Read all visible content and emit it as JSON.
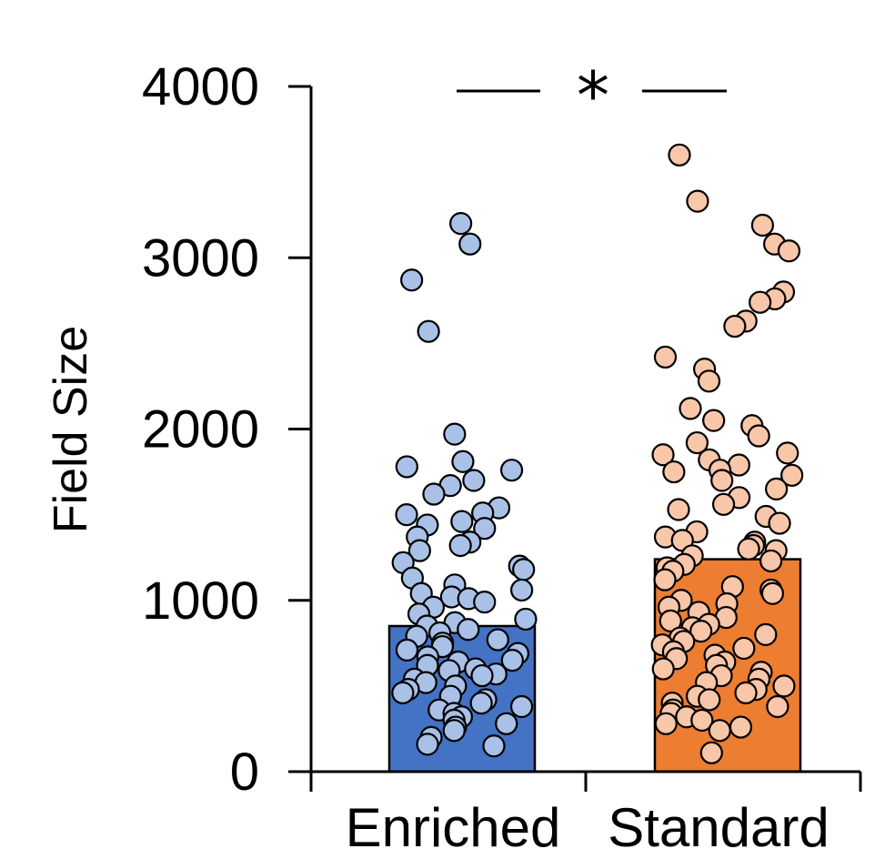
{
  "chart_data": {
    "type": "bar",
    "ylabel": "Field Size",
    "ylim": [
      0,
      4000
    ],
    "yticks": [
      0,
      1000,
      2000,
      3000,
      4000
    ],
    "categories": [
      "Enriched",
      "Standard"
    ],
    "bar_values": [
      850,
      1240
    ],
    "bar_colors": [
      "#4472C4",
      "#ED7D31"
    ],
    "point_colors": [
      "#A9C1E6",
      "#F8C6A8"
    ],
    "significance": {
      "between": [
        "Enriched",
        "Standard"
      ],
      "label": "*",
      "y": 4000
    },
    "points": [
      [
        3200,
        3080,
        2870,
        2570,
        1970,
        1810,
        1780,
        1760,
        1700,
        1670,
        1620,
        1540,
        1510,
        1500,
        1460,
        1440,
        1420,
        1370,
        1340,
        1320,
        1290,
        1220,
        1200,
        1180,
        1130,
        1090,
        1060,
        1040,
        1020,
        1010,
        990,
        960,
        920,
        890,
        870,
        850,
        830,
        810,
        790,
        770,
        750,
        730,
        710,
        690,
        670,
        650,
        640,
        620,
        600,
        590,
        570,
        560,
        540,
        520,
        500,
        480,
        460,
        440,
        420,
        400,
        380,
        360,
        340,
        320,
        300,
        280,
        260,
        240,
        200,
        160,
        150
      ],
      [
        3600,
        3330,
        3190,
        3080,
        3040,
        2800,
        2760,
        2740,
        2630,
        2600,
        2420,
        2350,
        2280,
        2120,
        2050,
        2020,
        1960,
        1920,
        1860,
        1850,
        1820,
        1790,
        1760,
        1750,
        1730,
        1700,
        1650,
        1600,
        1560,
        1530,
        1490,
        1450,
        1400,
        1370,
        1350,
        1340,
        1320,
        1300,
        1290,
        1260,
        1230,
        1210,
        1190,
        1170,
        1120,
        1080,
        1060,
        1040,
        1000,
        980,
        960,
        930,
        900,
        880,
        860,
        840,
        820,
        800,
        780,
        760,
        740,
        720,
        700,
        680,
        660,
        640,
        620,
        600,
        580,
        560,
        540,
        520,
        500,
        480,
        460,
        440,
        420,
        400,
        380,
        360,
        340,
        320,
        300,
        280,
        260,
        240,
        110
      ]
    ]
  }
}
